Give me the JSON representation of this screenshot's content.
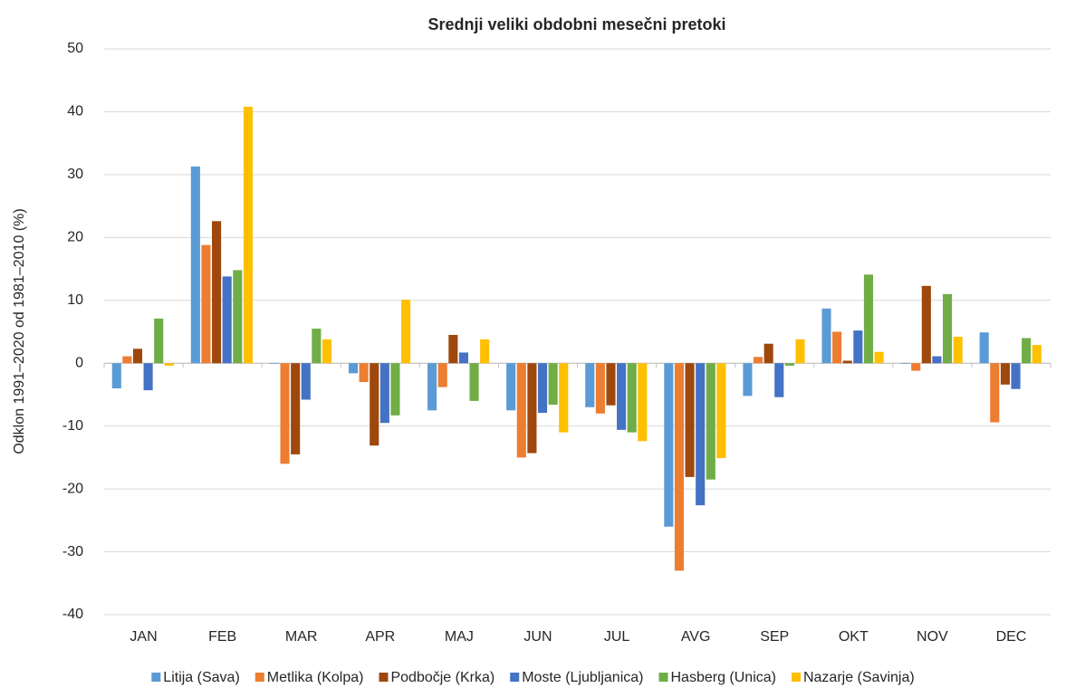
{
  "chart_data": {
    "type": "bar",
    "title": "Srednji veliki obdobni mesečni pretoki",
    "y_label": "Odklon 1991–2020 od 1981–2010 (%)",
    "categories": [
      "JAN",
      "FEB",
      "MAR",
      "APR",
      "MAJ",
      "JUN",
      "JUL",
      "AVG",
      "SEP",
      "OKT",
      "NOV",
      "DEC"
    ],
    "series": [
      {
        "name": "Litija (Sava)",
        "color": "#5b9bd5",
        "values": [
          -4.0,
          31.3,
          -0.1,
          -1.6,
          -7.5,
          -7.5,
          -7.0,
          -26.0,
          -5.2,
          8.7,
          -0.1,
          4.9
        ]
      },
      {
        "name": "Metlika (Kolpa)",
        "color": "#ed7d31",
        "values": [
          1.1,
          18.8,
          -16.0,
          -3.0,
          -3.8,
          -15.0,
          -8.0,
          -33.0,
          1.0,
          5.0,
          -1.2,
          -9.4
        ]
      },
      {
        "name": "Podbočje (Krka)",
        "color": "#9e480e",
        "values": [
          2.3,
          22.6,
          -14.5,
          -13.1,
          4.5,
          -14.3,
          -6.7,
          -18.1,
          3.1,
          0.4,
          12.3,
          -3.4
        ]
      },
      {
        "name": "Moste (Ljubljanica)",
        "color": "#4472c4",
        "values": [
          -4.3,
          13.8,
          -5.8,
          -9.5,
          1.7,
          -7.9,
          -10.6,
          -22.6,
          -5.4,
          5.2,
          1.1,
          -4.1
        ]
      },
      {
        "name": "Hasberg (Unica)",
        "color": "#70ad47",
        "values": [
          7.1,
          14.8,
          5.5,
          -8.3,
          -6.0,
          -6.6,
          -11.0,
          -18.5,
          -0.4,
          14.1,
          11.0,
          4.0
        ]
      },
      {
        "name": "Nazarje (Savinja)",
        "color": "#ffc000",
        "values": [
          -0.4,
          40.8,
          3.8,
          10.1,
          3.8,
          -11.0,
          -12.4,
          -15.1,
          3.8,
          1.8,
          4.2,
          2.9
        ]
      }
    ],
    "ylim": [
      -40,
      50
    ],
    "yticks": [
      -40,
      -30,
      -20,
      -10,
      0,
      10,
      20,
      30,
      40,
      50
    ],
    "grid": true,
    "legend": "bottom"
  }
}
